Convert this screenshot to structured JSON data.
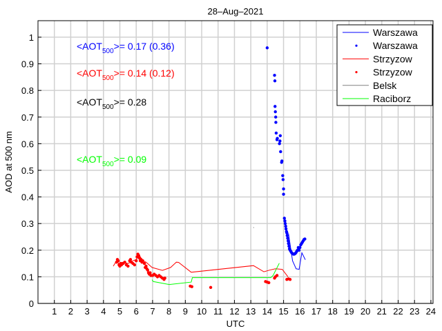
{
  "chart_data": {
    "type": "line",
    "title": "28–Aug–2021",
    "xlabel": "UTC",
    "ylabel": "AOD at 500 nm",
    "xlim": [
      0,
      24.13
    ],
    "ylim": [
      0,
      1.062
    ],
    "grid": true,
    "xticks": [
      1,
      2,
      3,
      4,
      5,
      6,
      7,
      8,
      9,
      10,
      11,
      12,
      13,
      14,
      15,
      16,
      17,
      18,
      19,
      20,
      21,
      22,
      23,
      24
    ],
    "yticks": [
      0,
      0.1,
      0.2,
      0.3,
      0.4,
      0.5,
      0.6,
      0.7,
      0.8,
      0.9,
      1
    ],
    "legend_position": "top-right",
    "legend": [
      {
        "label": "Warszawa",
        "kind": "line",
        "color": "#0000ff"
      },
      {
        "label": "Warszawa",
        "kind": "dot",
        "color": "#0000ff"
      },
      {
        "label": "Strzyzow",
        "kind": "line",
        "color": "#ff0000"
      },
      {
        "label": "Strzyzow",
        "kind": "dot",
        "color": "#ff0000"
      },
      {
        "label": "Belsk",
        "kind": "line",
        "color": "#808080"
      },
      {
        "label": "Raciborz",
        "kind": "line",
        "color": "#00ff00"
      }
    ],
    "annotations": [
      {
        "prefix": "<AOT",
        "sub": "500",
        "suffix": ">= 0.17 (0.36)",
        "color": "#0000ff"
      },
      {
        "prefix": "<AOT",
        "sub": "500",
        "suffix": ">= 0.14 (0.12)",
        "color": "#ff0000"
      },
      {
        "prefix": "<AOT",
        "sub": "500",
        "suffix": ">= 0.28",
        "color": "#000000"
      },
      {
        "prefix": "<AOT",
        "sub": "500",
        "suffix": ">= 0.09",
        "color": "#00ff00"
      }
    ],
    "series": [
      {
        "name": "Warszawa",
        "kind": "line",
        "color": "#0000ff",
        "x": [
          15.3,
          15.55,
          15.77,
          15.95,
          16.12,
          16.33
        ],
        "y": [
          0.263,
          0.16,
          0.13,
          0.128,
          0.19,
          0.164
        ]
      },
      {
        "name": "Warszawa",
        "kind": "dot",
        "color": "#0000ff",
        "x": [
          14.0,
          14.45,
          14.47,
          14.48,
          14.5,
          14.52,
          14.53,
          14.55,
          14.6,
          14.62,
          14.8,
          14.78,
          14.75,
          14.82,
          14.9,
          14.88,
          14.95,
          14.97,
          15.0,
          15.0,
          15.05,
          15.08,
          15.1,
          15.13,
          15.15,
          15.18,
          15.2,
          15.22,
          15.25,
          15.28,
          15.3,
          15.33,
          15.36,
          15.4,
          15.45,
          15.5,
          15.55,
          15.6,
          15.65,
          15.7,
          15.75,
          15.8,
          15.85,
          15.9,
          15.95,
          16.0,
          16.05,
          16.1,
          16.15,
          16.2,
          16.25,
          16.3
        ],
        "y": [
          0.96,
          0.857,
          0.836,
          0.74,
          0.72,
          0.7,
          0.68,
          0.64,
          0.615,
          0.62,
          0.63,
          0.61,
          0.6,
          0.57,
          0.535,
          0.53,
          0.48,
          0.465,
          0.43,
          0.41,
          0.32,
          0.31,
          0.3,
          0.29,
          0.28,
          0.27,
          0.265,
          0.255,
          0.245,
          0.235,
          0.225,
          0.215,
          0.205,
          0.2,
          0.195,
          0.19,
          0.187,
          0.185,
          0.185,
          0.187,
          0.19,
          0.195,
          0.2,
          0.21,
          0.2,
          0.21,
          0.22,
          0.225,
          0.23,
          0.235,
          0.24,
          0.242
        ]
      },
      {
        "name": "Strzyzow",
        "kind": "line",
        "color": "#ff0000",
        "x": [
          4.6,
          4.8,
          5.0,
          5.2,
          5.5,
          5.8,
          6.0,
          6.2,
          6.4,
          6.6,
          6.97,
          7.6,
          8.1,
          8.45,
          8.59,
          9.36,
          13.16,
          13.8,
          14.15,
          14.5,
          14.92,
          15.27
        ],
        "y": [
          0.14,
          0.16,
          0.145,
          0.155,
          0.15,
          0.16,
          0.165,
          0.18,
          0.16,
          0.155,
          0.135,
          0.124,
          0.135,
          0.155,
          0.154,
          0.117,
          0.142,
          0.119,
          0.125,
          0.13,
          0.128,
          0.1
        ]
      },
      {
        "name": "Strzyzow",
        "kind": "dot",
        "color": "#ff0000",
        "x": [
          4.8,
          4.85,
          4.9,
          4.95,
          5.0,
          5.05,
          5.1,
          5.15,
          5.2,
          5.3,
          5.4,
          5.5,
          5.6,
          5.65,
          5.7,
          5.8,
          5.9,
          6.0,
          6.05,
          6.1,
          6.15,
          6.2,
          6.25,
          6.3,
          6.35,
          6.4,
          6.5,
          6.55,
          6.6,
          6.65,
          6.7,
          6.75,
          6.8,
          6.85,
          6.9,
          7.0,
          7.1,
          7.2,
          7.3,
          7.4,
          7.5,
          7.6,
          7.7,
          7.75,
          9.3,
          9.4,
          10.55,
          13.9,
          14.0,
          14.1,
          14.45,
          14.5,
          14.6,
          15.2,
          15.3,
          15.4
        ],
        "y": [
          0.155,
          0.165,
          0.16,
          0.145,
          0.14,
          0.15,
          0.145,
          0.15,
          0.15,
          0.155,
          0.145,
          0.14,
          0.16,
          0.165,
          0.155,
          0.15,
          0.145,
          0.16,
          0.175,
          0.185,
          0.18,
          0.17,
          0.16,
          0.165,
          0.155,
          0.16,
          0.15,
          0.135,
          0.14,
          0.13,
          0.125,
          0.115,
          0.11,
          0.115,
          0.105,
          0.105,
          0.11,
          0.105,
          0.1,
          0.105,
          0.1,
          0.095,
          0.09,
          0.095,
          0.065,
          0.063,
          0.06,
          0.082,
          0.08,
          0.078,
          0.095,
          0.1,
          0.105,
          0.09,
          0.092,
          0.09
        ]
      },
      {
        "name": "Belsk",
        "kind": "line",
        "color": "#808080",
        "x": [
          13.15,
          13.2
        ],
        "y": [
          0.285,
          0.285
        ]
      },
      {
        "name": "Raciborz",
        "kind": "line",
        "color": "#00ff00",
        "x": [
          6.97,
          7.04,
          8.02,
          9.36,
          9.43,
          14.22,
          14.36,
          14.74
        ],
        "y": [
          0.089,
          0.082,
          0.071,
          0.08,
          0.097,
          0.097,
          0.105,
          0.151
        ]
      }
    ]
  }
}
